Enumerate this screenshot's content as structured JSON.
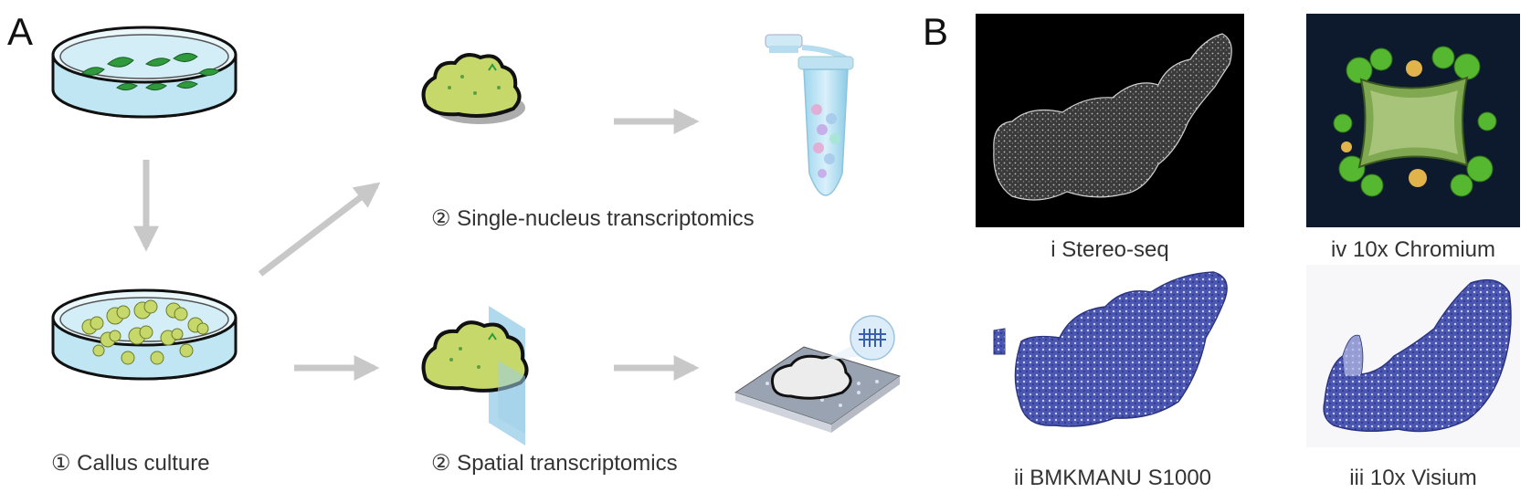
{
  "panel_a": {
    "label": "A",
    "steps": {
      "callus": "① Callus culture",
      "single_nucleus": "② Single-nucleus transcriptomics",
      "spatial": "② Spatial transcriptomics"
    }
  },
  "panel_b": {
    "label": "B",
    "images": [
      {
        "caption": "i Stereo-seq"
      },
      {
        "caption": "iv 10x Chromium"
      },
      {
        "caption": "ii BMKMANU S1000"
      },
      {
        "caption": "iii 10x Visium"
      }
    ]
  },
  "colors": {
    "arrow": "#c8c8c8",
    "callus": "#c6d86a",
    "leaf": "#2e9a3c",
    "dish": "#bfe6f2",
    "stain": "#3a46a0"
  }
}
